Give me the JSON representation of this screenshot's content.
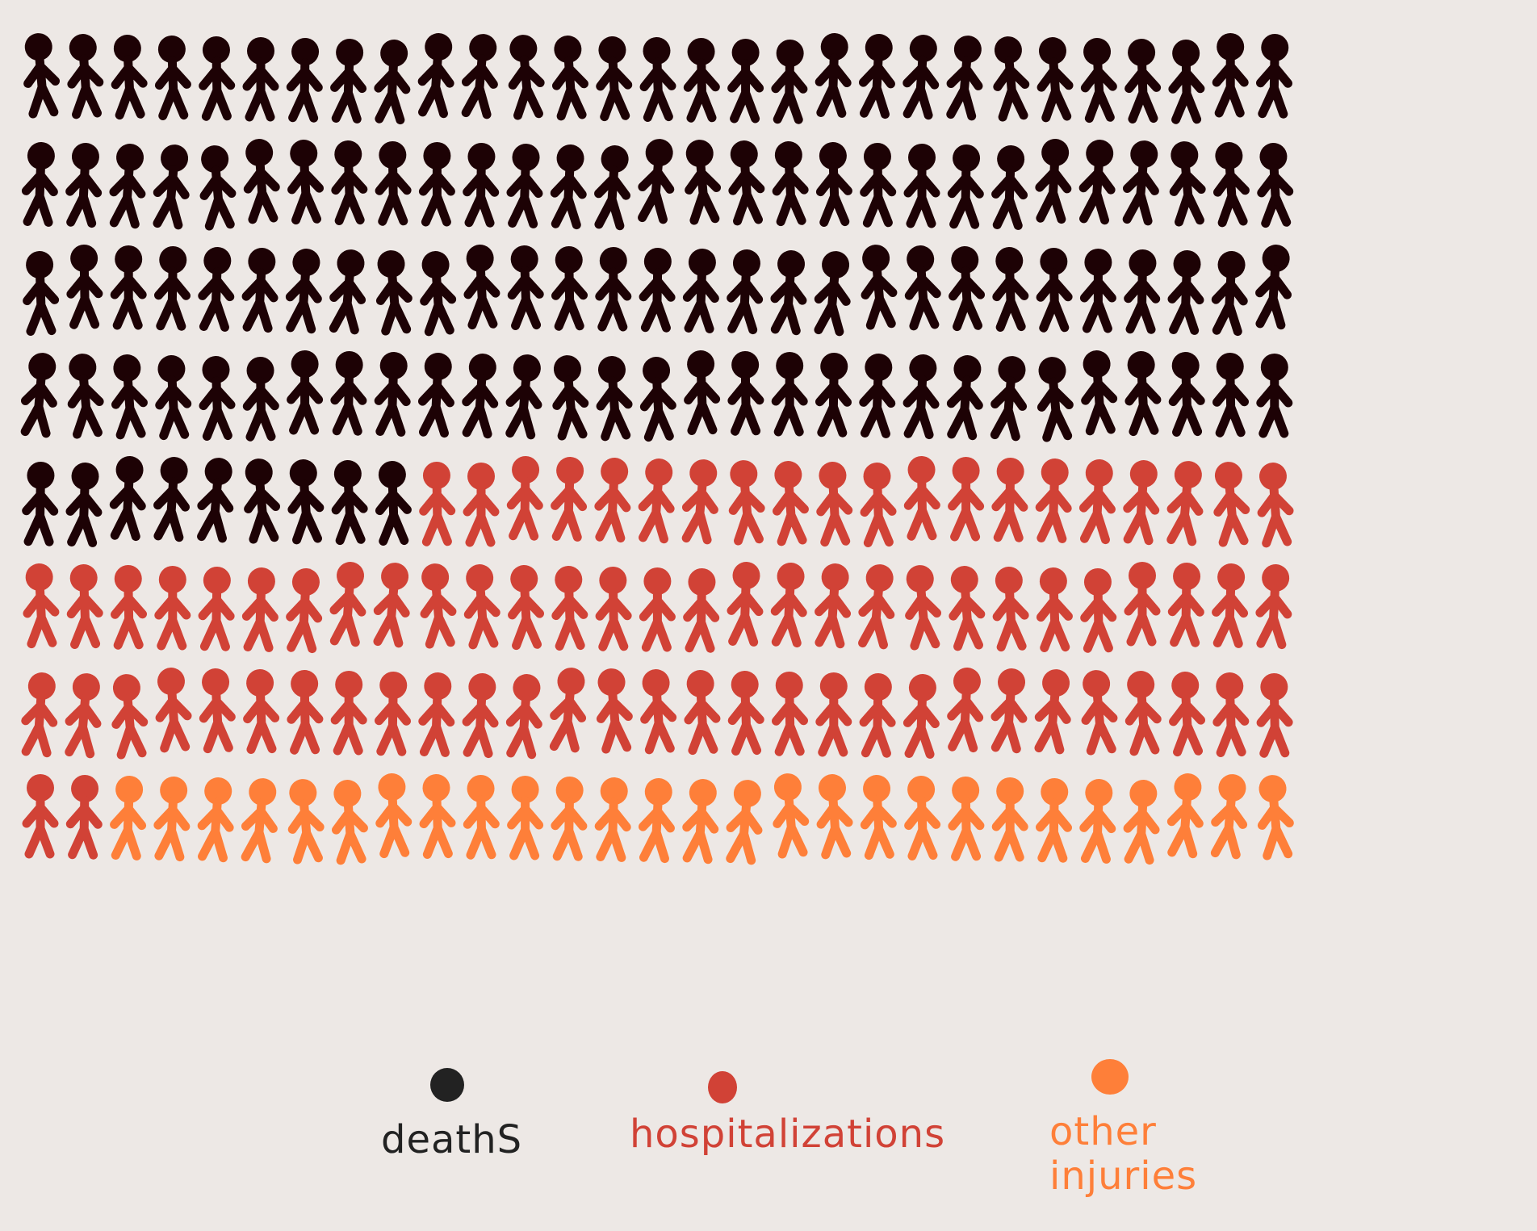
{
  "chart_data": {
    "type": "pictogram",
    "columns": 29,
    "rows": 8,
    "total_figures": 232,
    "series": [
      {
        "name": "deathS",
        "count": 125,
        "color": "#1d0205"
      },
      {
        "name": "hospitalizations",
        "count": 80,
        "color": "#d14236"
      },
      {
        "name": "other injuries",
        "count": 27,
        "color": "#fe7f39"
      }
    ],
    "legend": {
      "placement": "bottom",
      "items": [
        {
          "label": "deathS",
          "dot_color": "#222222",
          "text_color": "#222222"
        },
        {
          "label": "hospitalizations",
          "dot_color": "#d14236",
          "text_color": "#d14236"
        },
        {
          "label": "other injuries",
          "dot_color": "#fe7f39",
          "text_color": "#fe7f39"
        }
      ]
    }
  }
}
